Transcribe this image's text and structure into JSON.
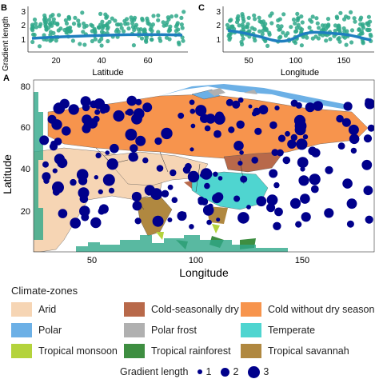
{
  "panels": {
    "b": {
      "label": "B",
      "xlabel": "Latitude",
      "ylabel": "Gradient length",
      "xticks": [
        "20",
        "40",
        "60"
      ],
      "yticks": [
        "1",
        "2",
        "3"
      ]
    },
    "c": {
      "label": "C",
      "xlabel": "Longitude",
      "xticks": [
        "50",
        "100",
        "150"
      ],
      "yticks": [
        "1",
        "2",
        "3"
      ]
    },
    "a": {
      "label": "A",
      "xlabel": "Longitude",
      "ylabel": "Latitude",
      "xticks": [
        "50",
        "100",
        "150"
      ],
      "yticks": [
        "20",
        "40",
        "60",
        "80"
      ]
    }
  },
  "legend": {
    "title": "Climate-zones",
    "zones": [
      {
        "label": "Arid",
        "color": "#f6d5b4"
      },
      {
        "label": "Cold-seasonally dry",
        "color": "#b8694a"
      },
      {
        "label": "Cold without dry season",
        "color": "#f7944d"
      },
      {
        "label": "Polar",
        "color": "#6cb0e6"
      },
      {
        "label": "Polar frost",
        "color": "#b0b0b0"
      },
      {
        "label": "Temperate",
        "color": "#4fd5d0"
      },
      {
        "label": "Tropical monsoon",
        "color": "#b4d33c"
      },
      {
        "label": "Tropical rainforest",
        "color": "#3e8e41"
      },
      {
        "label": "Tropical savannah",
        "color": "#b08840"
      }
    ],
    "size_title": "Gradient length",
    "sizes": [
      "1",
      "2",
      "3"
    ]
  },
  "colors": {
    "points": "#2fa88a",
    "trend": "#1f7fbf",
    "sites": "#00008b"
  },
  "chart_data": [
    {
      "type": "scatter",
      "panel": "B",
      "xlabel": "Latitude",
      "ylabel": "Gradient length",
      "xlim": [
        10,
        76
      ],
      "ylim": [
        0.3,
        3.4
      ],
      "trend": {
        "x": [
          12,
          20,
          30,
          40,
          50,
          60,
          70,
          75
        ],
        "y": [
          1.3,
          1.28,
          1.3,
          1.38,
          1.42,
          1.42,
          1.38,
          1.38
        ]
      },
      "points_summary": "dense cloud of ~300 sites, gradient length mostly 0.5–3.2"
    },
    {
      "type": "scatter",
      "panel": "C",
      "xlabel": "Longitude",
      "xlim": [
        22,
        182
      ],
      "ylim": [
        0.3,
        3.4
      ],
      "trend": {
        "x": [
          30,
          50,
          70,
          85,
          100,
          115,
          130,
          150,
          165,
          178
        ],
        "y": [
          1.85,
          1.7,
          1.3,
          1.15,
          1.3,
          1.6,
          1.55,
          1.45,
          1.15,
          1.1
        ]
      },
      "points_summary": "dense cloud of ~300 sites, gradient length mostly 0.5–3.2"
    }
  ]
}
